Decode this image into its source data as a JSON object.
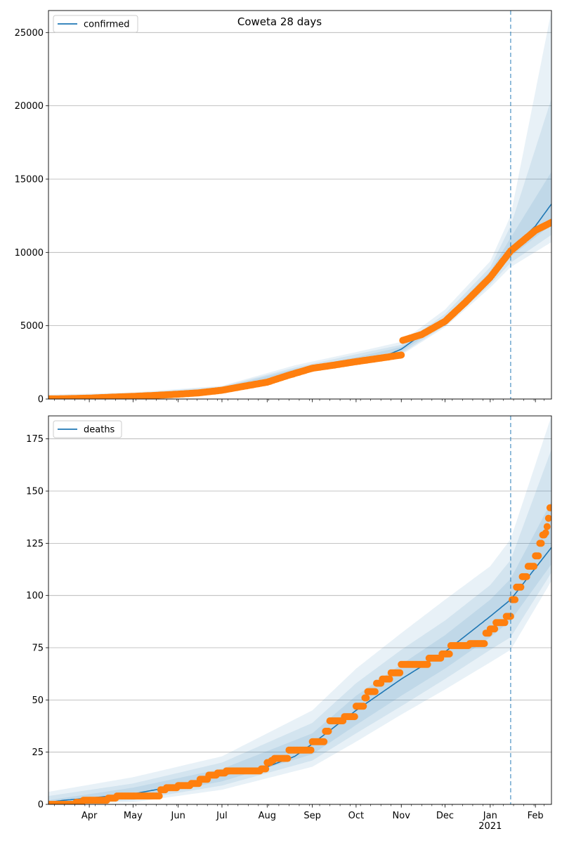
{
  "title": "Coweta 28 days",
  "colors": {
    "model": "#1f77b4",
    "observed": "#ff7f0e",
    "band": "#1f77b4",
    "grid": "#b0b0b0",
    "forecast_line": "#1f77b4"
  },
  "chart_data": [
    {
      "type": "line",
      "legend": "confirmed",
      "legend_position": "top-left",
      "grid": "y",
      "ylim": [
        0,
        26500
      ],
      "yticks": [
        0,
        5000,
        10000,
        15000,
        20000,
        25000
      ],
      "xlim": [
        "2020-03-04",
        "2021-02-12"
      ],
      "forecast_start": "2021-01-15",
      "model": [
        [
          "2020-03-04",
          60
        ],
        [
          "2020-04-01",
          100
        ],
        [
          "2020-05-01",
          220
        ],
        [
          "2020-06-01",
          420
        ],
        [
          "2020-07-01",
          700
        ],
        [
          "2020-08-01",
          1300
        ],
        [
          "2020-08-20",
          1900
        ],
        [
          "2020-09-01",
          2250
        ],
        [
          "2020-10-01",
          2650
        ],
        [
          "2020-10-20",
          2900
        ],
        [
          "2020-11-01",
          3400
        ],
        [
          "2020-11-15",
          4400
        ],
        [
          "2020-12-01",
          5300
        ],
        [
          "2020-12-15",
          6500
        ],
        [
          "2021-01-01",
          8300
        ],
        [
          "2021-01-15",
          10200
        ],
        [
          "2021-02-01",
          11800
        ],
        [
          "2021-02-12",
          13300
        ]
      ],
      "bands": [
        {
          "lower": [
            [
              "2020-03-04",
              0
            ],
            [
              "2020-05-01",
              150
            ],
            [
              "2020-07-01",
              550
            ],
            [
              "2020-08-20",
              1700
            ],
            [
              "2020-10-01",
              2400
            ],
            [
              "2020-11-01",
              3000
            ],
            [
              "2020-12-01",
              4900
            ],
            [
              "2021-01-01",
              7600
            ],
            [
              "2021-01-15",
              9000
            ],
            [
              "2021-02-12",
              10700
            ]
          ],
          "upper": [
            [
              "2020-03-04",
              300
            ],
            [
              "2020-05-01",
              450
            ],
            [
              "2020-07-01",
              900
            ],
            [
              "2020-08-20",
              2300
            ],
            [
              "2020-10-01",
              3200
            ],
            [
              "2020-11-01",
              3900
            ],
            [
              "2020-12-01",
              6100
            ],
            [
              "2021-01-01",
              9400
            ],
            [
              "2021-01-15",
              12500
            ],
            [
              "2021-02-12",
              26500
            ]
          ]
        },
        {
          "lower": [
            [
              "2020-03-04",
              10
            ],
            [
              "2020-05-01",
              170
            ],
            [
              "2020-07-01",
              600
            ],
            [
              "2020-08-20",
              1750
            ],
            [
              "2020-10-01",
              2450
            ],
            [
              "2020-11-01",
              3100
            ],
            [
              "2020-12-01",
              5000
            ],
            [
              "2021-01-01",
              7800
            ],
            [
              "2021-01-15",
              9300
            ],
            [
              "2021-02-12",
              11200
            ]
          ],
          "upper": [
            [
              "2020-03-04",
              200
            ],
            [
              "2020-05-01",
              380
            ],
            [
              "2020-07-01",
              850
            ],
            [
              "2020-08-20",
              2150
            ],
            [
              "2020-10-01",
              3050
            ],
            [
              "2020-11-01",
              3700
            ],
            [
              "2020-12-01",
              5800
            ],
            [
              "2021-01-01",
              9000
            ],
            [
              "2021-01-15",
              11800
            ],
            [
              "2021-02-12",
              20500
            ]
          ]
        },
        {
          "lower": [
            [
              "2020-03-04",
              30
            ],
            [
              "2020-05-01",
              190
            ],
            [
              "2020-07-01",
              650
            ],
            [
              "2020-08-20",
              1800
            ],
            [
              "2020-10-01",
              2550
            ],
            [
              "2020-11-01",
              3250
            ],
            [
              "2020-12-01",
              5150
            ],
            [
              "2021-01-01",
              8000
            ],
            [
              "2021-01-15",
              9700
            ],
            [
              "2021-02-12",
              11900
            ]
          ],
          "upper": [
            [
              "2020-03-04",
              130
            ],
            [
              "2020-05-01",
              300
            ],
            [
              "2020-07-01",
              780
            ],
            [
              "2020-08-20",
              2050
            ],
            [
              "2020-10-01",
              2850
            ],
            [
              "2020-11-01",
              3550
            ],
            [
              "2020-12-01",
              5550
            ],
            [
              "2021-01-01",
              8700
            ],
            [
              "2021-01-15",
              11000
            ],
            [
              "2021-02-12",
              15500
            ]
          ]
        }
      ],
      "observed": [
        [
          "2020-03-04",
          10
        ],
        [
          "2020-03-15",
          20
        ],
        [
          "2020-04-01",
          60
        ],
        [
          "2020-04-15",
          120
        ],
        [
          "2020-05-01",
          180
        ],
        [
          "2020-05-15",
          240
        ],
        [
          "2020-06-01",
          330
        ],
        [
          "2020-06-15",
          420
        ],
        [
          "2020-07-01",
          600
        ],
        [
          "2020-07-15",
          850
        ],
        [
          "2020-08-01",
          1150
        ],
        [
          "2020-08-15",
          1600
        ],
        [
          "2020-09-01",
          2100
        ],
        [
          "2020-09-15",
          2300
        ],
        [
          "2020-10-01",
          2550
        ],
        [
          "2020-10-15",
          2750
        ],
        [
          "2020-11-01",
          3000
        ],
        [
          "2020-11-02",
          4000
        ],
        [
          "2020-11-15",
          4400
        ],
        [
          "2020-12-01",
          5300
        ],
        [
          "2020-12-15",
          6600
        ],
        [
          "2021-01-01",
          8300
        ],
        [
          "2021-01-15",
          10100
        ],
        [
          "2021-02-01",
          11500
        ],
        [
          "2021-02-12",
          12050
        ]
      ]
    },
    {
      "type": "line",
      "legend": "deaths",
      "legend_position": "top-left",
      "grid": "y",
      "ylim": [
        0,
        186
      ],
      "yticks": [
        0,
        25,
        50,
        75,
        100,
        125,
        150,
        175
      ],
      "xlim": [
        "2020-03-04",
        "2021-02-12"
      ],
      "xtick_labels": [
        "Apr",
        "May",
        "Jun",
        "Jul",
        "Aug",
        "Sep",
        "Oct",
        "Nov",
        "Dec",
        "Jan\n2021",
        "Feb"
      ],
      "forecast_start": "2021-01-15",
      "model": [
        [
          "2020-03-04",
          1
        ],
        [
          "2020-03-15",
          2
        ],
        [
          "2020-04-01",
          3
        ],
        [
          "2020-05-01",
          5
        ],
        [
          "2020-06-01",
          9
        ],
        [
          "2020-07-01",
          14
        ],
        [
          "2020-08-01",
          18
        ],
        [
          "2020-08-20",
          23
        ],
        [
          "2020-09-01",
          29
        ],
        [
          "2020-10-01",
          45
        ],
        [
          "2020-11-01",
          60
        ],
        [
          "2020-12-01",
          73
        ],
        [
          "2021-01-01",
          90
        ],
        [
          "2021-01-15",
          98
        ],
        [
          "2021-02-12",
          123
        ]
      ],
      "bands": [
        {
          "lower": [
            [
              "2020-03-04",
              0
            ],
            [
              "2020-05-01",
              1
            ],
            [
              "2020-07-01",
              7
            ],
            [
              "2020-09-01",
              18
            ],
            [
              "2020-10-01",
              30
            ],
            [
              "2020-11-01",
              43
            ],
            [
              "2020-12-01",
              55
            ],
            [
              "2021-01-01",
              68
            ],
            [
              "2021-01-15",
              74
            ],
            [
              "2021-02-12",
              107
            ]
          ],
          "upper": [
            [
              "2020-03-04",
              6
            ],
            [
              "2020-05-01",
              13
            ],
            [
              "2020-07-01",
              23
            ],
            [
              "2020-09-01",
              45
            ],
            [
              "2020-10-01",
              65
            ],
            [
              "2020-11-01",
              82
            ],
            [
              "2020-12-01",
              98
            ],
            [
              "2021-01-01",
              114
            ],
            [
              "2021-01-15",
              127
            ],
            [
              "2021-02-12",
              186
            ]
          ]
        },
        {
          "lower": [
            [
              "2020-03-04",
              0
            ],
            [
              "2020-05-01",
              2
            ],
            [
              "2020-07-01",
              9
            ],
            [
              "2020-09-01",
              21
            ],
            [
              "2020-10-01",
              34
            ],
            [
              "2020-11-01",
              47
            ],
            [
              "2020-12-01",
              60
            ],
            [
              "2021-01-01",
              74
            ],
            [
              "2021-01-15",
              80
            ],
            [
              "2021-02-12",
              111
            ]
          ],
          "upper": [
            [
              "2020-03-04",
              4
            ],
            [
              "2020-05-01",
              10
            ],
            [
              "2020-07-01",
              20
            ],
            [
              "2020-09-01",
              39
            ],
            [
              "2020-10-01",
              58
            ],
            [
              "2020-11-01",
              74
            ],
            [
              "2020-12-01",
              88
            ],
            [
              "2021-01-01",
              105
            ],
            [
              "2021-01-15",
              117
            ],
            [
              "2021-02-12",
              170
            ]
          ]
        },
        {
          "lower": [
            [
              "2020-03-04",
              0
            ],
            [
              "2020-05-01",
              3
            ],
            [
              "2020-07-01",
              11
            ],
            [
              "2020-09-01",
              24
            ],
            [
              "2020-10-01",
              38
            ],
            [
              "2020-11-01",
              52
            ],
            [
              "2020-12-01",
              65
            ],
            [
              "2021-01-01",
              80
            ],
            [
              "2021-01-15",
              88
            ],
            [
              "2021-02-12",
              115
            ]
          ],
          "upper": [
            [
              "2020-03-04",
              2
            ],
            [
              "2020-05-01",
              8
            ],
            [
              "2020-07-01",
              17
            ],
            [
              "2020-09-01",
              34
            ],
            [
              "2020-10-01",
              52
            ],
            [
              "2020-11-01",
              67
            ],
            [
              "2020-12-01",
              81
            ],
            [
              "2021-01-01",
              98
            ],
            [
              "2021-01-15",
              108
            ],
            [
              "2021-02-12",
              145
            ]
          ]
        }
      ],
      "observed": [
        [
          "2020-03-04",
          0
        ],
        [
          "2020-03-23",
          1
        ],
        [
          "2020-03-28",
          2
        ],
        [
          "2020-04-10",
          2
        ],
        [
          "2020-04-14",
          3
        ],
        [
          "2020-04-20",
          4
        ],
        [
          "2020-05-15",
          4
        ],
        [
          "2020-05-20",
          7
        ],
        [
          "2020-05-24",
          8
        ],
        [
          "2020-06-01",
          9
        ],
        [
          "2020-06-10",
          10
        ],
        [
          "2020-06-16",
          12
        ],
        [
          "2020-06-22",
          14
        ],
        [
          "2020-06-28",
          15
        ],
        [
          "2020-07-04",
          16
        ],
        [
          "2020-07-15",
          16
        ],
        [
          "2020-07-28",
          17
        ],
        [
          "2020-08-01",
          20
        ],
        [
          "2020-08-04",
          21
        ],
        [
          "2020-08-06",
          22
        ],
        [
          "2020-08-14",
          22
        ],
        [
          "2020-08-16",
          26
        ],
        [
          "2020-08-31",
          26
        ],
        [
          "2020-09-01",
          30
        ],
        [
          "2020-09-10",
          35
        ],
        [
          "2020-09-13",
          40
        ],
        [
          "2020-09-23",
          42
        ],
        [
          "2020-10-01",
          47
        ],
        [
          "2020-10-07",
          51
        ],
        [
          "2020-10-09",
          54
        ],
        [
          "2020-10-15",
          58
        ],
        [
          "2020-10-19",
          60
        ],
        [
          "2020-10-25",
          63
        ],
        [
          "2020-10-31",
          63
        ],
        [
          "2020-11-01",
          67
        ],
        [
          "2020-11-15",
          67
        ],
        [
          "2020-11-20",
          70
        ],
        [
          "2020-11-29",
          72
        ],
        [
          "2020-12-05",
          76
        ],
        [
          "2020-12-10",
          76
        ],
        [
          "2020-12-18",
          77
        ],
        [
          "2020-12-25",
          77
        ],
        [
          "2020-12-29",
          82
        ],
        [
          "2021-01-01",
          84
        ],
        [
          "2021-01-05",
          87
        ],
        [
          "2021-01-12",
          90
        ],
        [
          "2021-01-16",
          98
        ],
        [
          "2021-01-19",
          104
        ],
        [
          "2021-01-23",
          109
        ],
        [
          "2021-01-27",
          114
        ],
        [
          "2021-02-01",
          119
        ],
        [
          "2021-02-04",
          125
        ],
        [
          "2021-02-06",
          129
        ],
        [
          "2021-02-08",
          130
        ],
        [
          "2021-02-09",
          133
        ],
        [
          "2021-02-10",
          137
        ],
        [
          "2021-02-11",
          142
        ]
      ]
    }
  ]
}
